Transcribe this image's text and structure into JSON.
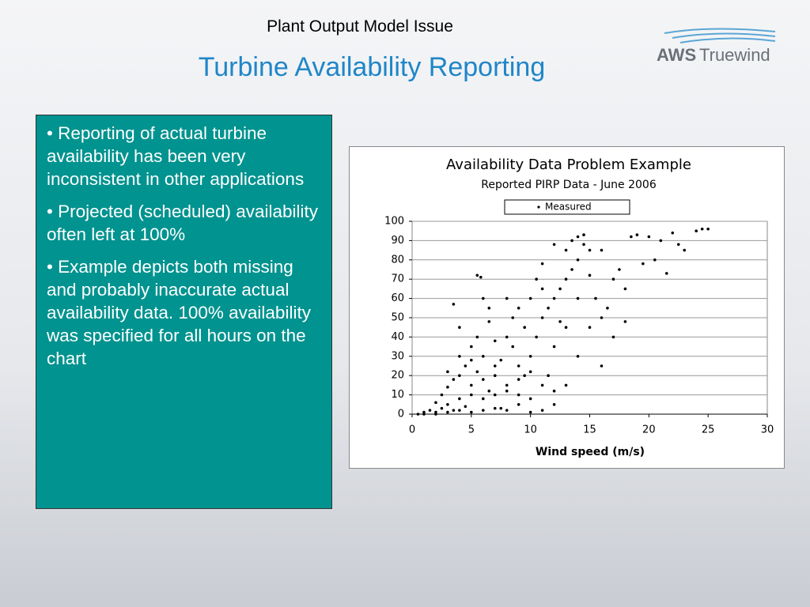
{
  "header": {
    "subtitle": "Plant Output Model Issue",
    "title": "Turbine Availability Reporting",
    "logo": [
      "AWS",
      "Truewind"
    ]
  },
  "bullets": [
    "• Reporting of actual turbine availability has been very inconsistent in other applications",
    "• Projected (scheduled) availability often left at 100%",
    "• Example depicts both missing and probably inaccurate actual availability data.  100% availability was specified for all hours on the chart"
  ],
  "chart_data": {
    "type": "scatter",
    "title": "Availability Data Problem Example",
    "subtitle": "Reported PIRP Data - June 2006",
    "x_label": "Wind speed (m/s)",
    "xlim": [
      0,
      30
    ],
    "xticks": [
      0,
      5,
      10,
      15,
      20,
      25,
      30
    ],
    "ylim": [
      0,
      100
    ],
    "yticks": [
      0,
      10,
      20,
      30,
      40,
      50,
      60,
      70,
      80,
      90,
      100
    ],
    "grid": true,
    "legend": "top",
    "series": [
      {
        "name": "Measured",
        "color": "#000000",
        "x": [
          0.5,
          1,
          1.5,
          2,
          2.5,
          3,
          3.5,
          4,
          4.5,
          5,
          2,
          2.5,
          3,
          3.5,
          4,
          4.5,
          5,
          5.5,
          6,
          6.5,
          3.5,
          4,
          5,
          5.5,
          6,
          6.5,
          7,
          7.5,
          8,
          8.5,
          5.5,
          5.8,
          6,
          6.5,
          7,
          7.5,
          8,
          8.5,
          9,
          9.5,
          9,
          9.5,
          10,
          10.5,
          11,
          11.5,
          12,
          12.5,
          13,
          13.5,
          10,
          10.5,
          11,
          11.5,
          12,
          12.5,
          13,
          13.5,
          14,
          14.5,
          14,
          14.5,
          15,
          15.5,
          16,
          16.5,
          17,
          17.5,
          18,
          18.5,
          19,
          19.5,
          20,
          20.5,
          21,
          21.5,
          22,
          22.5,
          23,
          24,
          12,
          13,
          14,
          15,
          16,
          11,
          10,
          9,
          8,
          7,
          1,
          2,
          3,
          4,
          5,
          6,
          7,
          8,
          9,
          10,
          16,
          17,
          18,
          13,
          14,
          15,
          12,
          11,
          24.5,
          25,
          3,
          4,
          5,
          6,
          7,
          8,
          9,
          10,
          11,
          12
        ],
        "values": [
          0,
          1,
          2,
          0,
          3,
          5,
          2,
          8,
          4,
          10,
          6,
          10,
          14,
          18,
          20,
          25,
          15,
          22,
          30,
          12,
          57,
          45,
          35,
          40,
          8,
          48,
          20,
          28,
          15,
          35,
          72,
          71,
          60,
          55,
          38,
          3,
          40,
          50,
          25,
          45,
          10,
          20,
          30,
          40,
          50,
          55,
          60,
          65,
          70,
          75,
          60,
          70,
          78,
          20,
          35,
          48,
          85,
          90,
          80,
          88,
          92,
          93,
          85,
          60,
          50,
          55,
          40,
          75,
          65,
          92,
          93,
          78,
          92,
          80,
          90,
          73,
          94,
          88,
          85,
          95,
          5,
          15,
          30,
          45,
          25,
          2,
          1,
          55,
          60,
          25,
          0,
          1,
          1,
          2,
          1,
          2,
          3,
          2,
          5,
          8,
          85,
          70,
          48,
          45,
          60,
          72,
          88,
          65,
          96,
          96,
          22,
          30,
          28,
          18,
          10,
          12,
          18,
          22,
          15,
          12
        ]
      }
    ]
  }
}
